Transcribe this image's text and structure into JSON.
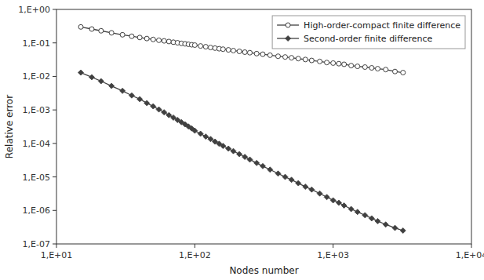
{
  "chart_data": {
    "type": "line",
    "xlabel": "Nodes number",
    "ylabel": "Relative error",
    "x": [
      15,
      18,
      21,
      25,
      30,
      35,
      40,
      45,
      50,
      55,
      60,
      65,
      70,
      75,
      80,
      85,
      90,
      95,
      100,
      110,
      120,
      130,
      140,
      150,
      160,
      175,
      190,
      210,
      230,
      250,
      280,
      310,
      350,
      400,
      450,
      500,
      560,
      630,
      700,
      800,
      900,
      1000,
      1100,
      1200,
      1350,
      1500,
      1700,
      1900,
      2100,
      2400,
      2800,
      3200
    ],
    "series": [
      {
        "name": "High-order-compact finite difference",
        "color": "#404040",
        "marker": "circle",
        "line_style": "solid",
        "values": [
          0.3,
          0.26,
          0.23,
          0.2,
          0.175,
          0.158,
          0.145,
          0.135,
          0.127,
          0.12,
          0.115,
          0.11,
          0.105,
          0.101,
          0.097,
          0.094,
          0.091,
          0.088,
          0.086,
          0.081,
          0.077,
          0.073,
          0.07,
          0.067,
          0.065,
          0.062,
          0.059,
          0.056,
          0.053,
          0.051,
          0.048,
          0.046,
          0.043,
          0.04,
          0.038,
          0.036,
          0.034,
          0.032,
          0.03,
          0.028,
          0.026,
          0.025,
          0.024,
          0.023,
          0.021,
          0.02,
          0.019,
          0.018,
          0.017,
          0.016,
          0.014,
          0.013
        ]
      },
      {
        "name": "Second-order finite difference",
        "color": "#404040",
        "marker": "diamond",
        "line_style": "solid",
        "values": [
          0.013,
          0.0095,
          0.0072,
          0.0052,
          0.0037,
          0.0027,
          0.0021,
          0.0016,
          0.00128,
          0.00103,
          0.00085,
          0.0007,
          0.00059,
          0.0005,
          0.00043,
          0.00037,
          0.00032,
          0.00028,
          0.00024,
          0.000195,
          0.00016,
          0.000135,
          0.000113,
          9.75e-05,
          8.4e-05,
          7e-05,
          5.9e-05,
          4.8e-05,
          3.95e-05,
          3.3e-05,
          2.6e-05,
          2.1e-05,
          1.65e-05,
          1.26e-05,
          1e-05,
          8.2e-06,
          6.5e-06,
          5.1e-06,
          4.2e-06,
          3.2e-06,
          2.5e-06,
          2e-06,
          1.7e-06,
          1.4e-06,
          1.1e-06,
          9e-07,
          7.2e-07,
          5.8e-07,
          4.8e-07,
          3.8e-07,
          3e-07,
          2.5e-07
        ]
      }
    ],
    "log": true,
    "xlim": [
      10,
      10000
    ],
    "ylim": [
      1e-07,
      1
    ],
    "xticks": [
      {
        "value": 10,
        "label": "1,E+01"
      },
      {
        "value": 100,
        "label": "1,E+02"
      },
      {
        "value": 1000,
        "label": "1,E+03"
      },
      {
        "value": 10000,
        "label": "1,E+04"
      }
    ],
    "yticks": [
      {
        "value": 1e-07,
        "label": "1,E-07"
      },
      {
        "value": 1e-06,
        "label": "1,E-06"
      },
      {
        "value": 1e-05,
        "label": "1,E-05"
      },
      {
        "value": 0.0001,
        "label": "1,E-04"
      },
      {
        "value": 0.001,
        "label": "1,E-03"
      },
      {
        "value": 0.01,
        "label": "1,E-02"
      },
      {
        "value": 0.1,
        "label": "1,E-01"
      },
      {
        "value": 1,
        "label": "1,E+00"
      }
    ],
    "grid": false,
    "legend": "upper right"
  }
}
